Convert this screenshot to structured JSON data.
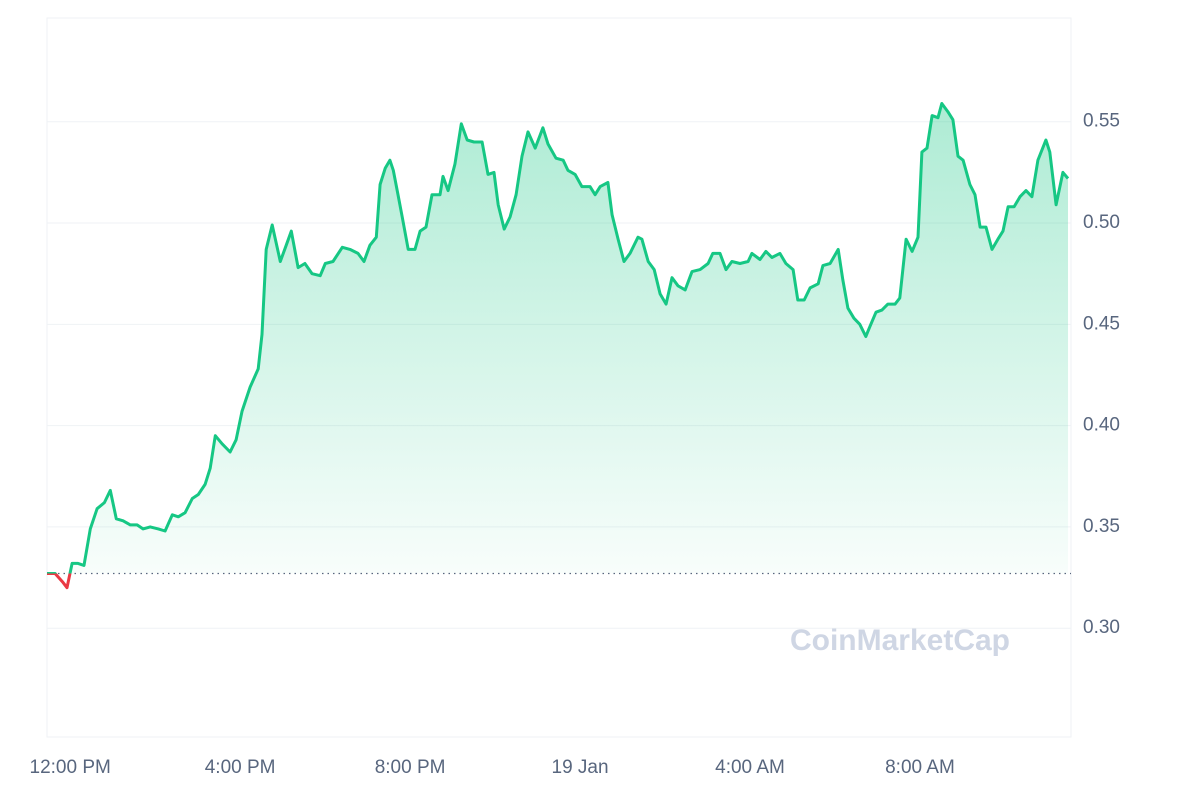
{
  "chart_data": {
    "type": "line",
    "watermark": "CoinMarketCap",
    "x": [
      -0.31,
      -0.12,
      0.05,
      0.16,
      0.28,
      0.42,
      0.56,
      0.71,
      0.87,
      1.04,
      1.18,
      1.32,
      1.48,
      1.65,
      1.81,
      1.95,
      2.12,
      2.31,
      2.47,
      2.64,
      2.78,
      2.94,
      3.11,
      3.25,
      3.41,
      3.53,
      3.65,
      3.81,
      4.0,
      4.14,
      4.28,
      4.47,
      4.66,
      4.75,
      4.85,
      4.99,
      5.18,
      5.32,
      5.44,
      5.6,
      5.76,
      5.93,
      6.12,
      6.24,
      6.42,
      6.64,
      6.82,
      7.01,
      7.15,
      7.29,
      7.44,
      7.53,
      7.65,
      7.76,
      7.84,
      7.95,
      8.05,
      8.19,
      8.35,
      8.47,
      8.61,
      8.75,
      8.94,
      9.01,
      9.13,
      9.29,
      9.44,
      9.58,
      9.74,
      9.93,
      10.07,
      10.21,
      10.31,
      10.45,
      10.59,
      10.73,
      10.87,
      11.01,
      11.18,
      11.36,
      11.48,
      11.67,
      11.84,
      11.95,
      12.12,
      12.28,
      12.47,
      12.59,
      12.71,
      12.89,
      12.99,
      13.13,
      13.27,
      13.41,
      13.6,
      13.69,
      13.84,
      13.98,
      14.12,
      14.26,
      14.4,
      14.54,
      14.71,
      14.87,
      15.06,
      15.25,
      15.36,
      15.53,
      15.67,
      15.81,
      16.0,
      16.19,
      16.28,
      16.47,
      16.61,
      16.75,
      16.94,
      17.08,
      17.25,
      17.36,
      17.51,
      17.65,
      17.84,
      17.95,
      18.12,
      18.31,
      18.42,
      18.54,
      18.68,
      18.82,
      18.96,
      19.06,
      19.2,
      19.34,
      19.48,
      19.65,
      19.76,
      19.91,
      20.05,
      20.19,
      20.28,
      20.4,
      20.52,
      20.66,
      20.75,
      20.89,
      21.01,
      21.13,
      21.25,
      21.41,
      21.53,
      21.65,
      21.79,
      21.93,
      22.07,
      22.19,
      22.31,
      22.45,
      22.59,
      22.73,
      22.87,
      23.01,
      23.2,
      23.29,
      23.44,
      23.6,
      23.72
    ],
    "series": [
      {
        "color": "#16c784",
        "below_color": "#ea3943",
        "values": [
          0.327,
          0.327,
          0.323,
          0.32,
          0.332,
          0.332,
          0.331,
          0.349,
          0.359,
          0.362,
          0.368,
          0.354,
          0.353,
          0.351,
          0.351,
          0.349,
          0.35,
          0.349,
          0.348,
          0.356,
          0.355,
          0.357,
          0.364,
          0.366,
          0.371,
          0.379,
          0.395,
          0.391,
          0.387,
          0.393,
          0.407,
          0.419,
          0.428,
          0.445,
          0.487,
          0.499,
          0.481,
          0.489,
          0.496,
          0.478,
          0.48,
          0.475,
          0.474,
          0.48,
          0.481,
          0.488,
          0.487,
          0.485,
          0.481,
          0.489,
          0.493,
          0.519,
          0.527,
          0.531,
          0.526,
          0.514,
          0.503,
          0.487,
          0.487,
          0.496,
          0.498,
          0.514,
          0.514,
          0.523,
          0.516,
          0.529,
          0.549,
          0.541,
          0.54,
          0.54,
          0.524,
          0.525,
          0.509,
          0.497,
          0.503,
          0.514,
          0.533,
          0.545,
          0.537,
          0.547,
          0.539,
          0.532,
          0.531,
          0.526,
          0.524,
          0.518,
          0.518,
          0.514,
          0.518,
          0.52,
          0.504,
          0.492,
          0.481,
          0.485,
          0.493,
          0.492,
          0.481,
          0.477,
          0.465,
          0.46,
          0.473,
          0.469,
          0.467,
          0.476,
          0.477,
          0.48,
          0.485,
          0.485,
          0.477,
          0.481,
          0.48,
          0.481,
          0.485,
          0.482,
          0.486,
          0.483,
          0.485,
          0.48,
          0.477,
          0.462,
          0.462,
          0.468,
          0.47,
          0.479,
          0.48,
          0.487,
          0.472,
          0.458,
          0.453,
          0.45,
          0.444,
          0.449,
          0.456,
          0.457,
          0.46,
          0.46,
          0.463,
          0.492,
          0.486,
          0.493,
          0.535,
          0.537,
          0.553,
          0.552,
          0.559,
          0.555,
          0.551,
          0.533,
          0.531,
          0.519,
          0.514,
          0.498,
          0.498,
          0.487,
          0.492,
          0.496,
          0.508,
          0.508,
          0.513,
          0.516,
          0.513,
          0.531,
          0.541,
          0.535,
          0.509,
          0.525,
          0.522
        ]
      }
    ],
    "baseline": 0.327,
    "xlim": [
      -0.31,
      23.79
    ],
    "xticks": [
      {
        "value": 0,
        "label": "12:00 PM"
      },
      {
        "value": 4,
        "label": "4:00 PM"
      },
      {
        "value": 8,
        "label": "8:00 PM"
      },
      {
        "value": 12,
        "label": "19 Jan"
      },
      {
        "value": 16,
        "label": "4:00 AM"
      },
      {
        "value": 20,
        "label": "8:00 AM"
      }
    ],
    "ylim": [
      0.2463,
      0.6012
    ],
    "yticks": [
      {
        "value": 0.3,
        "label": "0.30"
      },
      0.35,
      {
        "value": 0.4,
        "label": "0.40"
      },
      0.45,
      {
        "value": 0.5,
        "label": "0.50"
      },
      0.55
    ],
    "grid": true
  }
}
